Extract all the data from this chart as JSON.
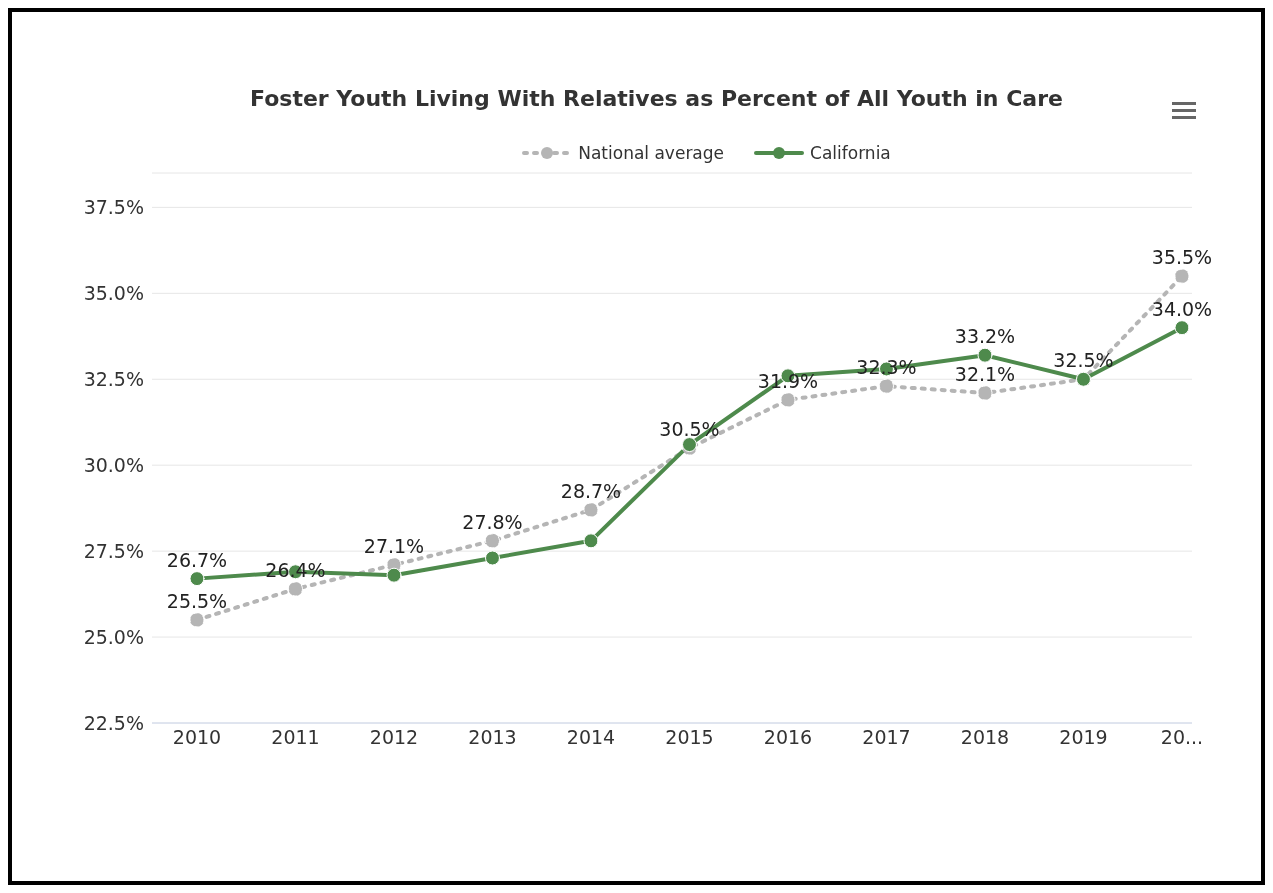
{
  "chart_data": {
    "type": "line",
    "title": "Foster Youth Living With Relatives as Percent of All Youth in Care",
    "categories": [
      "2010",
      "2011",
      "2012",
      "2013",
      "2014",
      "2015",
      "2016",
      "2017",
      "2018",
      "2019",
      "20..."
    ],
    "series": [
      {
        "name": "National average",
        "color": "#b5b5b5",
        "line_style": "dotted",
        "values": [
          25.5,
          26.4,
          27.1,
          27.8,
          28.7,
          30.5,
          31.9,
          32.3,
          32.1,
          32.5,
          35.5
        ],
        "value_labels": [
          "25.5%",
          "26.4%",
          "27.1%",
          "27.8%",
          "28.7%",
          "30.5%",
          "31.9%",
          "32.3%",
          "32.1%",
          null,
          "35.5%"
        ]
      },
      {
        "name": "California",
        "color": "#4e8a4c",
        "line_style": "solid",
        "values": [
          26.7,
          26.9,
          26.8,
          27.3,
          27.8,
          30.6,
          32.6,
          32.8,
          33.2,
          32.5,
          34.0
        ],
        "value_labels": [
          "26.7%",
          null,
          null,
          null,
          null,
          null,
          null,
          null,
          "33.2%",
          "32.5%",
          "34.0%"
        ]
      }
    ],
    "ylim": [
      22.5,
      38.5
    ],
    "yticks": [
      {
        "value": 22.5,
        "label": "22.5%"
      },
      {
        "value": 25,
        "label": "25.0%"
      },
      {
        "value": 27.5,
        "label": "27.5%"
      },
      {
        "value": 30,
        "label": "30.0%"
      },
      {
        "value": 32.5,
        "label": "32.5%"
      },
      {
        "value": 35,
        "label": "35.0%"
      },
      {
        "value": 37.5,
        "label": "37.5%"
      }
    ],
    "grid": "y",
    "legend": "top",
    "marker": "circle"
  }
}
